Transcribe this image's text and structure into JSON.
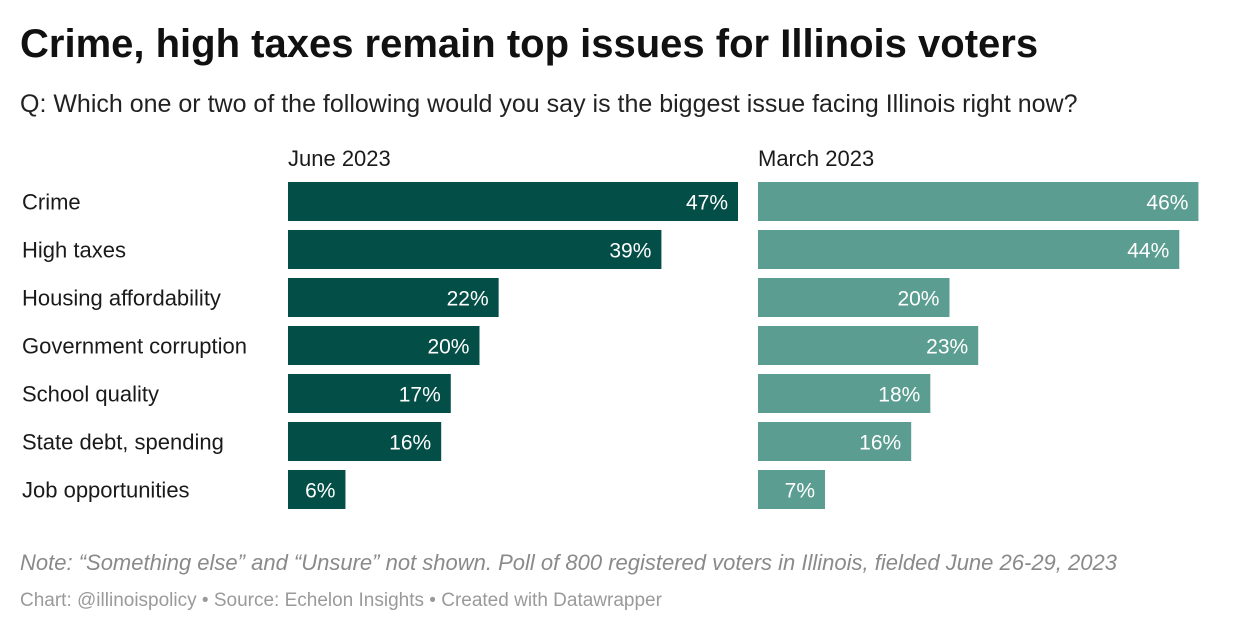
{
  "title": "Crime, high taxes remain top issues for Illinois voters",
  "subtitle": "Q: Which one or two of the following would you say is the biggest issue facing Illinois right now?",
  "note": "Note: “Something else” and “Unsure” not shown. Poll of 800 registered voters in Illinois, fielded June 26-29, 2023",
  "credits": "Chart: @illinoispolicy • Source: Echelon Insights • Created with Datawrapper",
  "colors": {
    "june": "#034e46",
    "march": "#5b9d91"
  },
  "chart_data": {
    "type": "bar",
    "orientation": "horizontal",
    "categories": [
      "Crime",
      "High taxes",
      "Housing affordability",
      "Government corruption",
      "School quality",
      "State debt, spending",
      "Job opportunities"
    ],
    "series": [
      {
        "name": "June 2023",
        "values": [
          47,
          39,
          22,
          20,
          17,
          16,
          6
        ],
        "labels": [
          "47%",
          "39%",
          "22%",
          "20%",
          "17%",
          "16%",
          "6%"
        ]
      },
      {
        "name": "March 2023",
        "values": [
          46,
          44,
          20,
          23,
          18,
          16,
          7
        ],
        "labels": [
          "46%",
          "44%",
          "20%",
          "23%",
          "18%",
          "16%",
          "7%"
        ]
      }
    ],
    "unit": "%",
    "xlim": [
      0,
      47
    ],
    "legend": "panel-headers"
  }
}
